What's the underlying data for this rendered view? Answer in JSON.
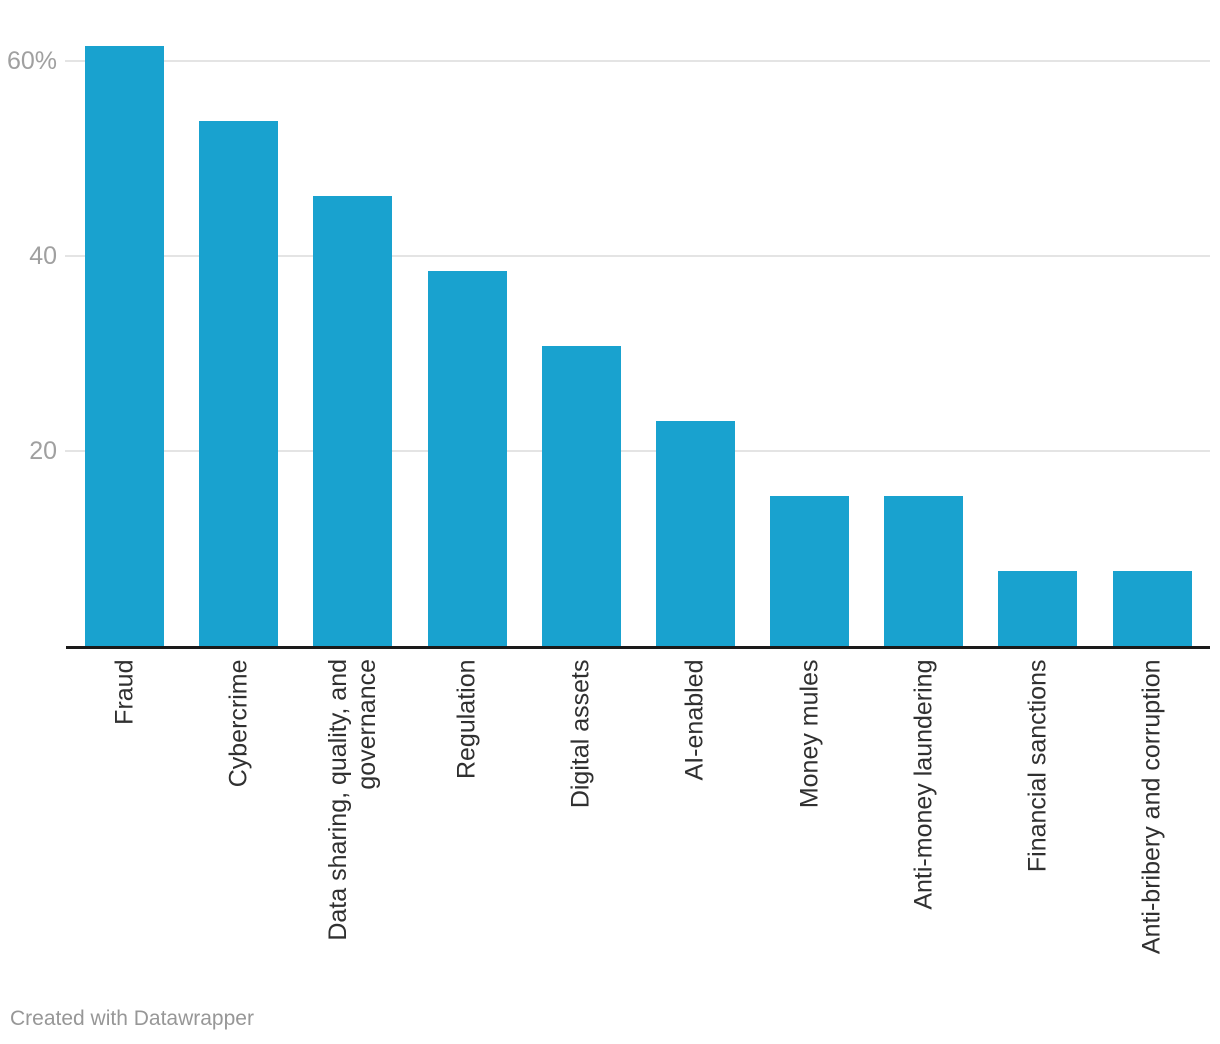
{
  "chart_data": {
    "type": "bar",
    "title": "",
    "xlabel": "",
    "ylabel": "",
    "categories": [
      "Fraud",
      "Cybercrime",
      "Data sharing, quality, and\ngovernance",
      "Regulation",
      "Digital assets",
      "AI-enabled",
      "Money mules",
      "Anti-money laundering",
      "Financial sanctions",
      "Anti-bribery and corruption"
    ],
    "values": [
      61.5,
      53.8,
      46.2,
      38.5,
      30.8,
      23.1,
      15.4,
      15.4,
      7.7,
      7.7
    ],
    "unit": "%",
    "ylim": [
      0,
      66
    ],
    "yticks": [
      {
        "value": 20,
        "label": "20"
      },
      {
        "value": 40,
        "label": "40"
      },
      {
        "value": 60,
        "label": "60%"
      }
    ],
    "grid": "horizontal",
    "legend": "none",
    "colors": {
      "bar": "#19a2cf",
      "axis": "#1a1a1a",
      "gridline": "#e4e4e4",
      "tick_label": "#a0a0a0",
      "category_label": "#303030",
      "credit_text": "#979797"
    }
  },
  "footer": {
    "credit": "Created with Datawrapper"
  }
}
